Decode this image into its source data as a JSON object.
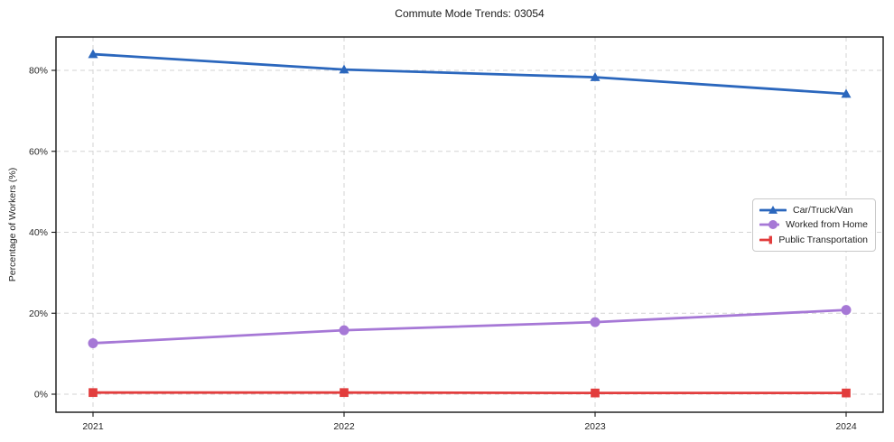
{
  "title": "Commute Mode Trends: 03054",
  "chart_data": {
    "type": "line",
    "x": [
      "2021",
      "2022",
      "2023",
      "2024"
    ],
    "xlabel": "",
    "ylabel": "Percentage of Workers (%)",
    "yticks": [
      0,
      20,
      40,
      60,
      80
    ],
    "ytick_labels": [
      "0%",
      "20%",
      "40%",
      "60%",
      "80%"
    ],
    "ylim": [
      -4.5,
      88.5
    ],
    "grid": true,
    "grid_style": "dashed",
    "legend_position": "center right",
    "series": [
      {
        "name": "Car/Truck/Van",
        "marker": "triangle",
        "color": "#2b67bd",
        "values": [
          84.0,
          80.2,
          78.3,
          74.2
        ]
      },
      {
        "name": "Worked from Home",
        "marker": "circle",
        "color": "#a678d6",
        "values": [
          12.6,
          15.8,
          17.8,
          20.8
        ]
      },
      {
        "name": "Public Transportation",
        "marker": "square",
        "color": "#e23d3d",
        "values": [
          0.4,
          0.4,
          0.3,
          0.3
        ]
      }
    ]
  }
}
